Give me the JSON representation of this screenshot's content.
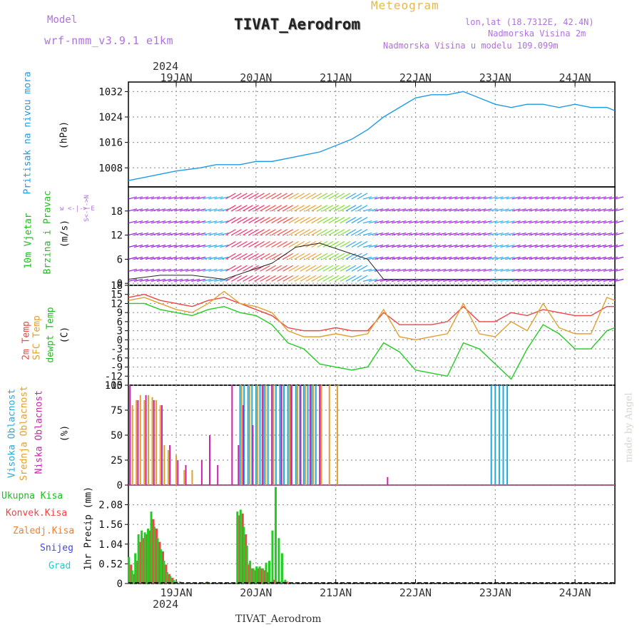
{
  "header": {
    "meteogram": "Meteogram",
    "model_label": "Model",
    "model_name": "wrf-nmm_v3.9.1  e1km",
    "station": "TIVAT_Aerodrom",
    "lonlat": "lon,lat (18.7312E, 42.4N)",
    "elev": "Nadmorska Visina 2m",
    "model_elev": "Nadmorska Visina u modelu 109.099m",
    "year": "2024",
    "footer_station": "TIVAT_Aerodrom",
    "credit": "made by Angel"
  },
  "time_axis": {
    "day_labels": [
      "19JAN",
      "20JAN",
      "21JAN",
      "22JAN",
      "23JAN",
      "24JAN"
    ],
    "day_positions": [
      0,
      1,
      2,
      3,
      4,
      5
    ],
    "range": [
      -0.6,
      5.5
    ]
  },
  "colors": {
    "pressure": "#1e9be6",
    "temp2m": "#ee4545",
    "sfc": "#e0a030",
    "dew": "#22cc22",
    "high_cloud": "#22aadd",
    "mid_cloud": "#e0a030",
    "low_cloud": "#cc22aa",
    "total_precip": "#22cc22",
    "conv_precip": "#ee4545"
  },
  "chart_data": [
    {
      "type": "line",
      "name": "pressure",
      "ylabel_1": "Pritisak na nivou mora",
      "ylabel_2": "(hPa)",
      "ylim": [
        1002,
        1035
      ],
      "ticks": [
        1008,
        1016,
        1024,
        1032
      ],
      "x": [
        -0.6,
        -0.4,
        -0.2,
        0.0,
        0.3,
        0.5,
        0.8,
        1.0,
        1.2,
        1.4,
        1.6,
        1.8,
        2.0,
        2.2,
        2.4,
        2.6,
        2.8,
        3.0,
        3.2,
        3.4,
        3.6,
        3.8,
        4.0,
        4.2,
        4.4,
        4.6,
        4.8,
        5.0,
        5.2,
        5.4,
        5.5
      ],
      "y": [
        1004,
        1005,
        1006,
        1007,
        1008,
        1009,
        1009,
        1010,
        1010,
        1011,
        1012,
        1013,
        1015,
        1017,
        1020,
        1024,
        1027,
        1030,
        1031,
        1031,
        1032,
        1030,
        1028,
        1027,
        1028,
        1028,
        1027,
        1028,
        1027,
        1027,
        1026
      ]
    },
    {
      "type": "barbs",
      "name": "wind",
      "ylabel_1": "10m Vjetar",
      "ylabel_2": "Brzina i Pravac",
      "ylabel_3": "(m/s)",
      "compass": "w <-|-> E",
      "compass_ns": "S<-|->N",
      "ylim": [
        -0.5,
        24
      ],
      "ticks": [
        0,
        6,
        12,
        18
      ],
      "x": [
        -0.6,
        -0.2,
        0.2,
        0.6,
        0.9,
        1.2,
        1.5,
        1.8,
        2.1,
        2.4,
        2.6,
        2.9,
        3.2,
        3.5,
        3.8,
        4.0,
        4.3,
        4.6,
        4.9,
        5.2,
        5.5
      ],
      "speed": [
        1,
        2,
        2,
        1,
        3,
        5,
        9,
        10,
        8,
        6,
        1,
        1,
        1,
        1,
        1,
        1,
        1,
        1,
        1,
        1,
        1
      ]
    },
    {
      "type": "line",
      "name": "temperature",
      "ylabel_1": "2m Temp",
      "ylabel_2": "SFC Temp",
      "ylabel_3": "dewpt Temp",
      "ylabel_unit": "(C)",
      "ylim": [
        -15,
        18
      ],
      "ticks": [
        18,
        15,
        12,
        9,
        6,
        3,
        0,
        -3,
        -6,
        -9,
        -12,
        -15
      ],
      "x": [
        -0.6,
        -0.4,
        -0.2,
        0.0,
        0.2,
        0.4,
        0.6,
        0.8,
        1.0,
        1.2,
        1.4,
        1.6,
        1.8,
        2.0,
        2.2,
        2.4,
        2.6,
        2.8,
        3.0,
        3.2,
        3.4,
        3.6,
        3.8,
        4.0,
        4.2,
        4.4,
        4.6,
        4.8,
        5.0,
        5.2,
        5.4,
        5.5
      ],
      "series": [
        {
          "name": "2m Temp",
          "values": [
            14,
            15,
            13,
            12,
            11,
            13,
            14,
            12,
            10,
            8,
            4,
            3,
            3,
            4,
            3,
            3,
            9,
            5,
            5,
            5,
            6,
            11,
            6,
            6,
            9,
            8,
            10,
            9,
            8,
            8,
            11,
            11
          ]
        },
        {
          "name": "SFC Temp",
          "values": [
            13,
            14,
            12,
            10,
            9,
            12,
            16,
            12,
            11,
            9,
            3,
            1,
            1,
            2,
            1,
            2,
            10,
            1,
            0,
            1,
            2,
            12,
            2,
            1,
            6,
            3,
            12,
            4,
            2,
            2,
            14,
            13
          ]
        },
        {
          "name": "dewpt Temp",
          "values": [
            12,
            12,
            10,
            9,
            8,
            10,
            11,
            9,
            8,
            5,
            -1,
            -3,
            -8,
            -9,
            -10,
            -9,
            -1,
            -4,
            -10,
            -11,
            -12,
            -1,
            -3,
            -8,
            -13,
            -3,
            5,
            2,
            -3,
            -3,
            3,
            4
          ]
        }
      ]
    },
    {
      "type": "bar",
      "name": "clouds",
      "ylabel_1": "Visoka Oblacnost",
      "ylabel_2": "Srednja Oblacnost",
      "ylabel_3": "Niska Oblacnost",
      "ylabel_unit": "(%)",
      "ylim": [
        0,
        100
      ],
      "ticks": [
        0,
        25,
        50,
        75,
        100
      ],
      "series": [
        {
          "name": "Visoka Oblacnost",
          "x": [
            0.8,
            0.85,
            0.9,
            0.95,
            1.0,
            1.05,
            1.1,
            1.15,
            1.2,
            1.25,
            1.3,
            1.35,
            1.4,
            1.45,
            1.5,
            1.55,
            1.6,
            1.65,
            1.7,
            1.75,
            1.8,
            3.95,
            4.0,
            4.05,
            4.1,
            4.15
          ],
          "values": [
            100,
            100,
            100,
            100,
            100,
            100,
            100,
            100,
            100,
            100,
            100,
            100,
            100,
            100,
            100,
            100,
            100,
            100,
            100,
            100,
            100,
            100,
            100,
            100,
            100,
            100
          ]
        },
        {
          "name": "Srednja Oblacnost",
          "x": [
            -0.55,
            -0.5,
            -0.45,
            -0.4,
            -0.35,
            -0.3,
            -0.25,
            -0.2,
            -0.15,
            -0.1,
            0.0,
            0.1,
            0.2,
            0.82,
            0.92,
            1.02,
            1.12,
            1.22,
            1.32,
            1.42,
            1.52,
            1.62,
            1.72,
            1.82,
            1.92,
            2.02
          ],
          "values": [
            80,
            85,
            90,
            85,
            90,
            88,
            85,
            80,
            40,
            35,
            30,
            15,
            15,
            100,
            100,
            100,
            100,
            100,
            100,
            100,
            100,
            100,
            100,
            100,
            100,
            100
          ]
        },
        {
          "name": "Niska Oblacnost",
          "x": [
            -0.58,
            -0.48,
            -0.38,
            -0.28,
            -0.18,
            -0.08,
            0.02,
            0.12,
            0.32,
            0.42,
            0.52,
            0.7,
            0.78,
            0.84,
            0.96,
            1.08,
            1.2,
            1.32,
            1.44,
            1.56,
            1.68,
            1.8,
            2.65
          ],
          "values": [
            100,
            85,
            90,
            85,
            80,
            40,
            25,
            20,
            25,
            50,
            20,
            100,
            40,
            80,
            60,
            100,
            100,
            100,
            100,
            100,
            100,
            100,
            8
          ]
        }
      ]
    },
    {
      "type": "bar",
      "name": "precip",
      "ylabel_1": "1hr Precip",
      "ylabel_unit": "(mm)",
      "legend": [
        "Ukupna Kisa",
        "Konvek.Kisa",
        "Zaledj.Kisa",
        "Snijeg",
        "Grad"
      ],
      "ylim": [
        0,
        2.6
      ],
      "ticks": [
        0,
        0.52,
        1.04,
        1.56,
        2.08
      ],
      "x": [
        -0.58,
        -0.54,
        -0.5,
        -0.46,
        -0.42,
        -0.38,
        -0.34,
        -0.3,
        -0.26,
        -0.22,
        -0.18,
        -0.14,
        -0.1,
        -0.06,
        -0.02,
        0.02,
        0.06,
        0.1,
        0.14,
        0.18,
        0.4,
        0.78,
        0.82,
        0.86,
        0.9,
        0.94,
        0.98,
        1.02,
        1.06,
        1.1,
        1.14,
        1.18,
        1.22,
        1.26,
        1.3,
        1.34,
        1.38,
        1.42,
        1.46,
        1.5
      ],
      "total": [
        0.7,
        0.35,
        0.8,
        1.3,
        1.4,
        1.35,
        1.45,
        1.9,
        1.5,
        1.2,
        0.9,
        0.6,
        0.3,
        0.2,
        0.1,
        0.05,
        0.05,
        0.02,
        0.02,
        0.02,
        0.05,
        1.9,
        1.95,
        1.5,
        1.0,
        0.6,
        0.4,
        0.45,
        0.45,
        0.4,
        0.55,
        0.6,
        1.4,
        2.55,
        1.2,
        0.8,
        0.1,
        0.02,
        0.02,
        0.02
      ],
      "conv": [
        0.5,
        0.25,
        0.6,
        1.1,
        1.2,
        1.3,
        1.4,
        1.7,
        1.45,
        1.1,
        0.85,
        0.5,
        0.25,
        0.15,
        0.05,
        0.02,
        0.02,
        0,
        0,
        0,
        0.02,
        1.8,
        1.85,
        1.3,
        0.5,
        0.4,
        0.35,
        0.4,
        0.4,
        0.35,
        0.3,
        0.05,
        0.1,
        0.05,
        0.05,
        0.05,
        0.05,
        0,
        0,
        0
      ]
    }
  ]
}
